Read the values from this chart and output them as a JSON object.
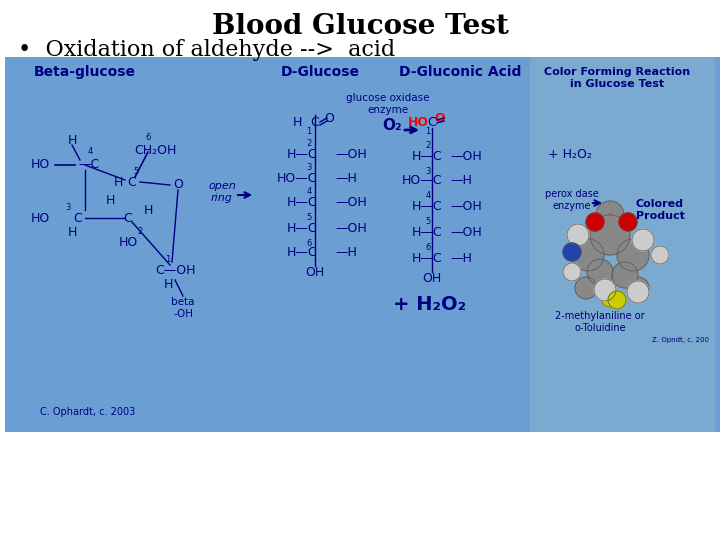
{
  "title": "Blood Glucose Test",
  "subtitle": "•  Oxidation of aldehyde -->  acid",
  "bg_color": "#6b9fd4",
  "white_bg": "#ffffff",
  "title_fontsize": 20,
  "subtitle_fontsize": 16,
  "text_color": "#000080",
  "labels": {
    "beta_glucose": "Beta-glucose",
    "d_glucose": "D-Glucose",
    "d_gluconic": "D-Gluconic Acid",
    "glucose_oxidase": "glucose oxidase\nenzyme",
    "color_forming": "Color Forming Reaction\nin Glucose Test",
    "open_ring": "open\nring",
    "beta_oh": "beta\n-OH",
    "peroxidase": "perox dase\nenzyme",
    "colored_product": "Colored\nProduct",
    "methylaniline": "2-methylaniline or\no-Toluidine",
    "copyright": "C. Ophardt, c. 2003",
    "h2o2_bottom": "+ H₂O₂",
    "o2": "O₂"
  }
}
